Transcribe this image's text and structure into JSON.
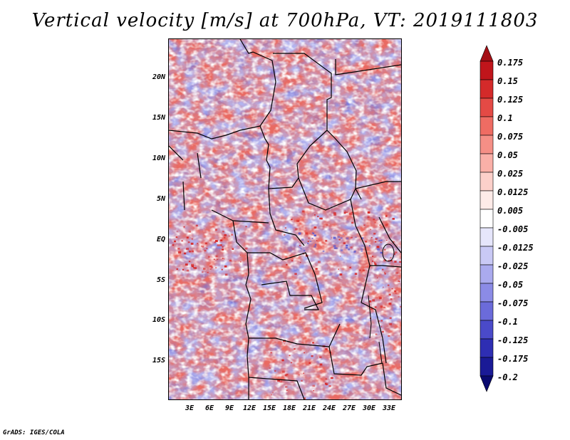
{
  "title": "Vertical velocity [m/s] at 700hPa, VT: 2019111803",
  "credit": "GrADS: IGES/COLA",
  "lat_labels": [
    "20N",
    "15N",
    "10N",
    "5N",
    "EQ",
    "5S",
    "10S",
    "15S"
  ],
  "lon_labels": [
    "3E",
    "6E",
    "9E",
    "12E",
    "15E",
    "18E",
    "21E",
    "24E",
    "27E",
    "30E",
    "33E"
  ],
  "colorbar": {
    "labels": [
      "0.175",
      "0.15",
      "0.125",
      "0.1",
      "0.075",
      "0.05",
      "0.025",
      "0.0125",
      "0.005",
      "-0.005",
      "-0.0125",
      "-0.025",
      "-0.05",
      "-0.075",
      "-0.1",
      "-0.125",
      "-0.175",
      "-0.2"
    ],
    "colors": [
      "#a50f15",
      "#c0151b",
      "#d42a2a",
      "#e44a45",
      "#ef6c63",
      "#f58f86",
      "#fab0a8",
      "#fcd0ca",
      "#feebe8",
      "#ffffff",
      "#e6e6fb",
      "#c9c9f5",
      "#aaaaee",
      "#8b8be6",
      "#6b6bda",
      "#4a4ac9",
      "#2e2eb3",
      "#1a1a96",
      "#0a0a70"
    ]
  },
  "map": {
    "lat_range": [
      -20,
      24
    ],
    "lon_range": [
      0,
      35
    ],
    "palette": {
      "strong_red": "#d62828",
      "red": "#ef7a70",
      "light_red": "#f9c0b8",
      "white": "#ffffff",
      "light_blue": "#cfcff4",
      "blue": "#9c9ce8",
      "strong_blue": "#5a5ad0"
    }
  }
}
